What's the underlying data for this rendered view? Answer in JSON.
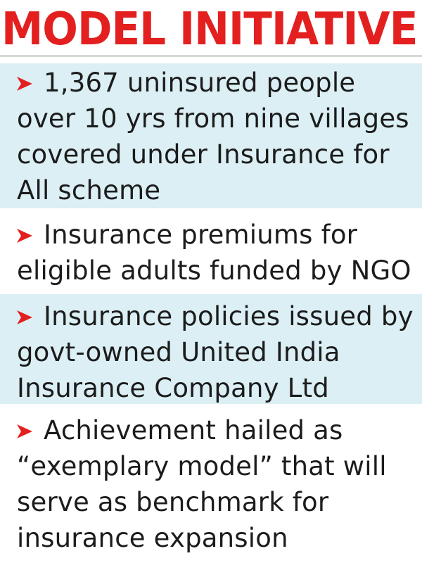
{
  "title": "MODEL INITIATIVE",
  "colors": {
    "title": "#e3201f",
    "arrow": "#e3201f",
    "shade": "#dbeff4",
    "text": "#1c1c1c"
  },
  "arrow_icon": "right-arrowhead-icon",
  "items": [
    {
      "text": "1,367 uninsured people over 10 yrs from nine villages covered under Insurance for All scheme"
    },
    {
      "text": "Insurance premiums for eligible adults funded by NGO"
    },
    {
      "text": "Insurance policies issued by govt-owned United India Insurance Company Ltd"
    },
    {
      "text": "Achievement hailed as “exemplary model” that will serve as benchmark for insurance expansion"
    }
  ]
}
